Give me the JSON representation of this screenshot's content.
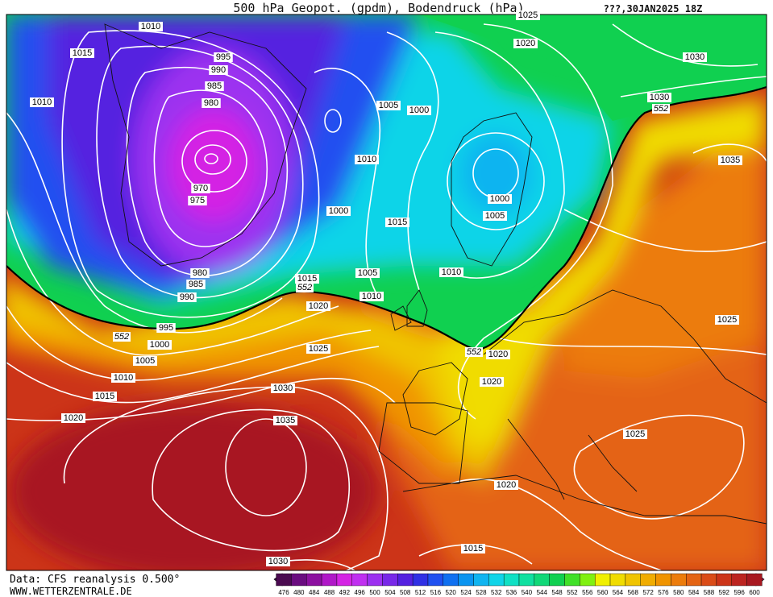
{
  "header": {
    "title": "500 hPa Geopot. (gpdm), Bodendruck (hPa)",
    "date": "???,30JAN2025 18Z"
  },
  "isobar_labels": [
    1010,
    1015,
    1010,
    995,
    990,
    985,
    980,
    970,
    975,
    980,
    985,
    990,
    995,
    1000,
    1005,
    1010,
    1015,
    1020,
    1030,
    1035,
    1025,
    1020,
    1015,
    1010,
    1005,
    1000,
    1010,
    1005,
    1000,
    1015,
    1010,
    1005,
    1000,
    1020,
    1025,
    1030,
    1030,
    1035,
    1025,
    1020,
    1020,
    1025,
    1020,
    1015,
    1030
  ],
  "contour_552_labels": [
    552,
    552,
    552,
    552
  ],
  "legend": {
    "levels": [
      476,
      480,
      484,
      488,
      492,
      496,
      500,
      504,
      508,
      512,
      516,
      520,
      524,
      528,
      532,
      536,
      540,
      544,
      548,
      552,
      556,
      560,
      564,
      568,
      572,
      576,
      580,
      584,
      588,
      592,
      596,
      600
    ],
    "colors": [
      "#4a0a50",
      "#6a0c80",
      "#8c10a0",
      "#b018c8",
      "#d424e4",
      "#c030f0",
      "#9c30f0",
      "#7828e8",
      "#5420e0",
      "#3030e4",
      "#2050f0",
      "#1070f0",
      "#0a94f0",
      "#10b4f0",
      "#10d4e8",
      "#10e0c4",
      "#10e0a0",
      "#10d878",
      "#10d050",
      "#40e028",
      "#80f010",
      "#f0f000",
      "#f0dc00",
      "#f0c400",
      "#f0ac00",
      "#f09400",
      "#ec7c0c",
      "#e46414",
      "#da4c18",
      "#cc3418",
      "#bc2420",
      "#a81820"
    ]
  },
  "footer": {
    "source": "Data: CFS reanalysis 0.500°",
    "website": "WWW.WETTERZENTRALE.DE"
  }
}
